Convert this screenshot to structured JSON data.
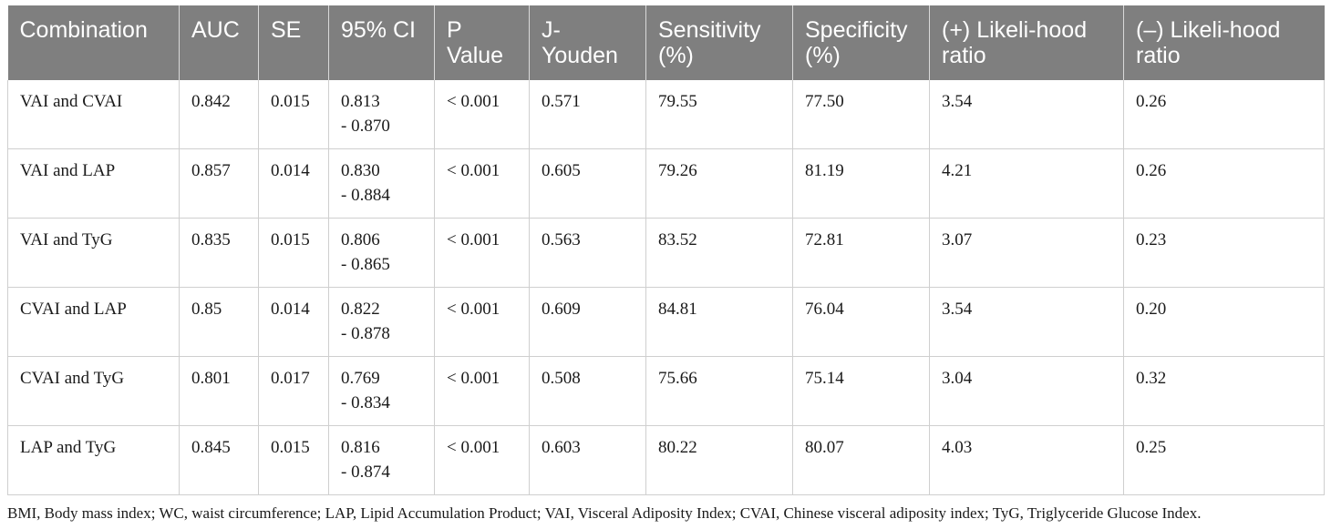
{
  "table": {
    "headers": [
      "Combination",
      "AUC",
      "SE",
      "95% CI",
      "P Value",
      "J-Youden",
      "Sensitivity (%)",
      "Specificity (%)",
      "(+) Likeli-hood ratio",
      "(–) Likeli-hood ratio"
    ],
    "rows": [
      [
        "VAI and CVAI",
        "0.842",
        "0.015",
        "0.813\n- 0.870",
        "< 0.001",
        "0.571",
        "79.55",
        "77.50",
        "3.54",
        "0.26"
      ],
      [
        "VAI and LAP",
        "0.857",
        "0.014",
        "0.830\n- 0.884",
        "< 0.001",
        "0.605",
        "79.26",
        "81.19",
        "4.21",
        "0.26"
      ],
      [
        "VAI and TyG",
        "0.835",
        "0.015",
        "0.806\n- 0.865",
        "< 0.001",
        "0.563",
        "83.52",
        "72.81",
        "3.07",
        "0.23"
      ],
      [
        "CVAI and LAP",
        "0.85",
        "0.014",
        "0.822\n- 0.878",
        "< 0.001",
        "0.609",
        "84.81",
        "76.04",
        "3.54",
        "0.20"
      ],
      [
        "CVAI and TyG",
        "0.801",
        "0.017",
        "0.769\n- 0.834",
        "< 0.001",
        "0.508",
        "75.66",
        "75.14",
        "3.04",
        "0.32"
      ],
      [
        "LAP and TyG",
        "0.845",
        "0.015",
        "0.816\n- 0.874",
        "< 0.001",
        "0.603",
        "80.22",
        "80.07",
        "4.03",
        "0.25"
      ]
    ]
  },
  "footnote": "BMI, Body mass index; WC, waist circumference; LAP, Lipid Accumulation Product; VAI, Visceral Adiposity Index; CVAI, Chinese visceral adiposity index; TyG, Triglyceride Glucose Index."
}
